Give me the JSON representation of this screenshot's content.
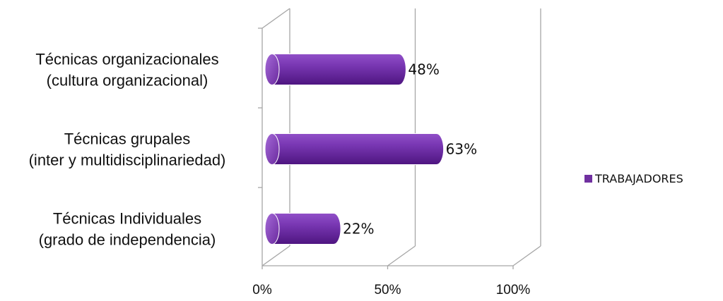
{
  "chart_data": {
    "type": "bar",
    "orientation": "horizontal",
    "style": "3d-cylinder",
    "categories": [
      [
        "Técnicas organizacionales",
        "(cultura organizacional)"
      ],
      [
        "Técnicas grupales",
        "(inter y multidisciplinariedad)"
      ],
      [
        "Técnicas Individuales",
        "(grado de independencia)"
      ]
    ],
    "series": [
      {
        "name": "TRABAJADORES",
        "values": [
          0.48,
          0.63,
          0.22
        ],
        "labels": [
          "48%",
          "63%",
          "22%"
        ],
        "color": "#7030A0"
      }
    ],
    "xlim": [
      0,
      1
    ],
    "xticks": [
      0,
      0.5,
      1
    ],
    "xtick_labels": [
      "0%",
      "50%",
      "100%"
    ],
    "grid": true,
    "legend_position": "right"
  }
}
